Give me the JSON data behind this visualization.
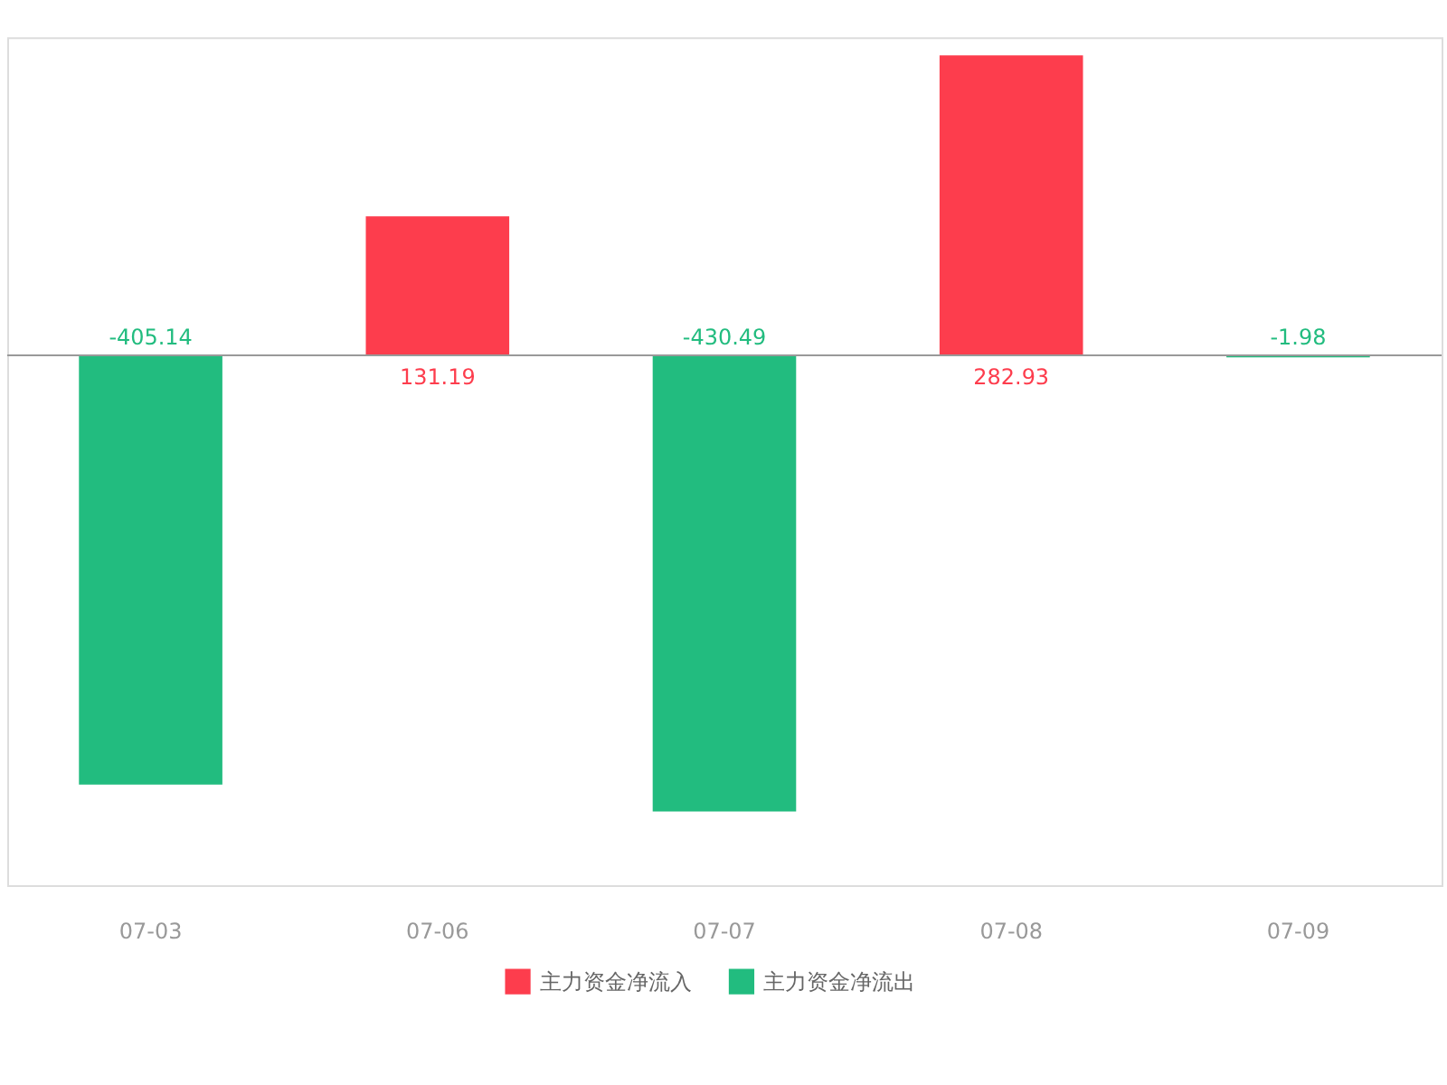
{
  "chart_data": {
    "type": "bar",
    "categories": [
      "07-03",
      "07-06",
      "07-07",
      "07-08",
      "07-09"
    ],
    "series": [
      {
        "name": "主力资金净流入",
        "color": "#fd3d4d",
        "values": [
          null,
          131.19,
          null,
          282.93,
          null
        ]
      },
      {
        "name": "主力资金净流出",
        "color": "#22bc7f",
        "values": [
          -405.14,
          null,
          -430.49,
          null,
          -1.98
        ]
      }
    ],
    "data_labels": true,
    "legend": "bottom",
    "grid": false,
    "tick_labels": "x"
  }
}
